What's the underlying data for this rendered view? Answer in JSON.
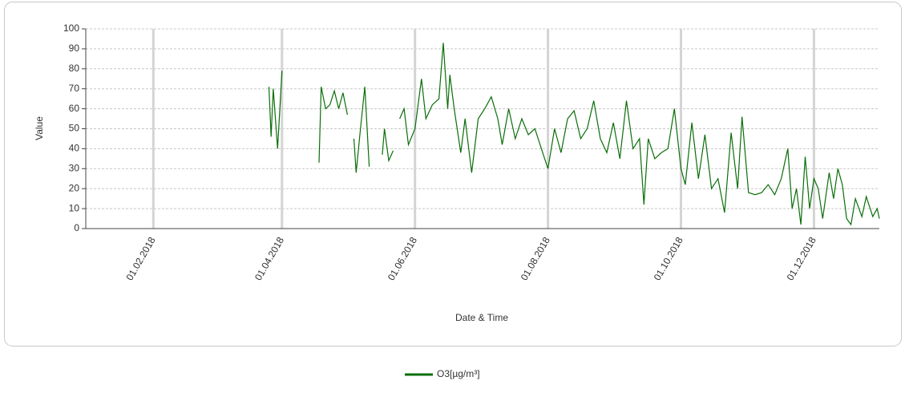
{
  "chart_data": {
    "type": "line",
    "xlabel": "Date & Time",
    "ylabel": "Value",
    "xlim": [
      "2018-01-01",
      "2018-12-31"
    ],
    "xticks": [
      {
        "value": "2018-02-01",
        "label": "01.02.2018"
      },
      {
        "value": "2018-04-01",
        "label": "01.04.2018"
      },
      {
        "value": "2018-06-01",
        "label": "01.06.2018"
      },
      {
        "value": "2018-08-01",
        "label": "01.08.2018"
      },
      {
        "value": "2018-10-01",
        "label": "01.10.2018"
      },
      {
        "value": "2018-12-01",
        "label": "01.12.2018"
      }
    ],
    "ylim": [
      0,
      100
    ],
    "yticks": [
      0,
      10,
      20,
      30,
      40,
      50,
      60,
      70,
      80,
      90,
      100
    ],
    "grid": true,
    "legend": "bottom",
    "x": [
      "2018-03-26",
      "2018-03-27",
      "2018-03-28",
      "2018-03-30",
      "2018-04-01",
      "2018-04-10",
      "2018-04-18",
      "2018-04-19",
      "2018-04-21",
      "2018-04-23",
      "2018-04-25",
      "2018-04-27",
      "2018-04-29",
      "2018-05-01",
      "2018-05-02",
      "2018-05-04",
      "2018-05-05",
      "2018-05-07",
      "2018-05-09",
      "2018-05-11",
      "2018-05-14",
      "2018-05-17",
      "2018-05-18",
      "2018-05-20",
      "2018-05-22",
      "2018-05-23",
      "2018-05-25",
      "2018-05-27",
      "2018-05-29",
      "2018-06-01",
      "2018-06-04",
      "2018-06-06",
      "2018-06-09",
      "2018-06-12",
      "2018-06-14",
      "2018-06-16",
      "2018-06-17",
      "2018-06-19",
      "2018-06-22",
      "2018-06-24",
      "2018-06-27",
      "2018-06-30",
      "2018-07-03",
      "2018-07-06",
      "2018-07-09",
      "2018-07-11",
      "2018-07-14",
      "2018-07-17",
      "2018-07-20",
      "2018-07-23",
      "2018-07-26",
      "2018-07-29",
      "2018-08-01",
      "2018-08-04",
      "2018-08-07",
      "2018-08-10",
      "2018-08-13",
      "2018-08-16",
      "2018-08-19",
      "2018-08-22",
      "2018-08-25",
      "2018-08-28",
      "2018-08-31",
      "2018-09-03",
      "2018-09-06",
      "2018-09-09",
      "2018-09-12",
      "2018-09-14",
      "2018-09-16",
      "2018-09-19",
      "2018-09-22",
      "2018-09-25",
      "2018-09-28",
      "2018-10-01",
      "2018-10-03",
      "2018-10-06",
      "2018-10-09",
      "2018-10-12",
      "2018-10-15",
      "2018-10-18",
      "2018-10-21",
      "2018-10-24",
      "2018-10-27",
      "2018-10-29",
      "2018-11-01",
      "2018-11-04",
      "2018-11-07",
      "2018-11-10",
      "2018-11-13",
      "2018-11-16",
      "2018-11-19",
      "2018-11-21",
      "2018-11-23",
      "2018-11-25",
      "2018-11-27",
      "2018-11-29",
      "2018-12-01",
      "2018-12-03",
      "2018-12-05",
      "2018-12-08",
      "2018-12-10",
      "2018-12-12",
      "2018-12-14",
      "2018-12-16",
      "2018-12-18",
      "2018-12-20",
      "2018-12-23",
      "2018-12-25",
      "2018-12-28",
      "2018-12-30",
      "2018-12-31"
    ],
    "series": [
      {
        "name": "O3[µg/m³]",
        "color": "#0a6e0a",
        "values": [
          71,
          46,
          70,
          40,
          79,
          null,
          33,
          71,
          60,
          62,
          69,
          60,
          68,
          57,
          null,
          45,
          28,
          50,
          71,
          31,
          null,
          37,
          50,
          34,
          39,
          null,
          55,
          60,
          42,
          50,
          75,
          55,
          62,
          65,
          93,
          60,
          77,
          60,
          38,
          55,
          28,
          55,
          60,
          66,
          55,
          42,
          60,
          45,
          55,
          47,
          50,
          40,
          30,
          50,
          38,
          55,
          59,
          45,
          50,
          64,
          45,
          38,
          53,
          35,
          64,
          40,
          45,
          12,
          45,
          35,
          38,
          40,
          60,
          30,
          22,
          53,
          25,
          47,
          20,
          25,
          8,
          48,
          20,
          56,
          18,
          17,
          18,
          22,
          17,
          25,
          40,
          10,
          20,
          2,
          36,
          10,
          25,
          20,
          5,
          28,
          15,
          30,
          22,
          5,
          2,
          15,
          6,
          16,
          6,
          10,
          5
        ]
      }
    ]
  }
}
